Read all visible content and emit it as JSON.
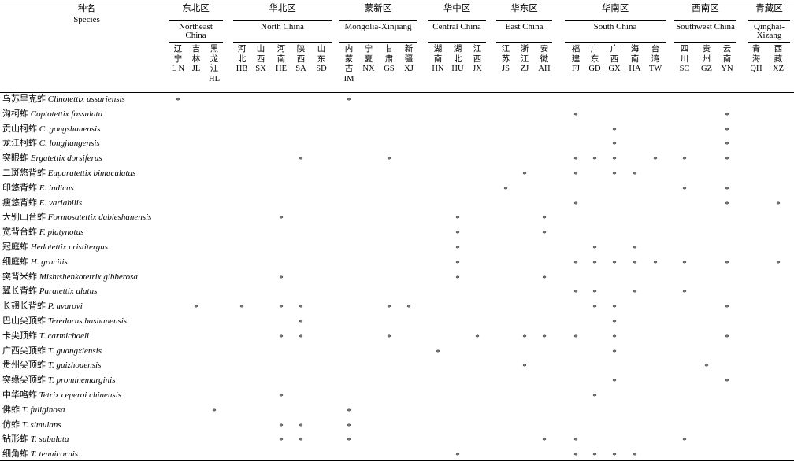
{
  "header": {
    "title_cn": "种名",
    "title_en": "Species"
  },
  "regions": [
    {
      "cn": "东北区",
      "en": "Northeast China"
    },
    {
      "cn": "华北区",
      "en": "North China"
    },
    {
      "cn": "蒙新区",
      "en": "Mongolia-Xinjiang"
    },
    {
      "cn": "华中区",
      "en": "Central China"
    },
    {
      "cn": "华东区",
      "en": "East China"
    },
    {
      "cn": "华南区",
      "en": "South China"
    },
    {
      "cn": "西南区",
      "en": "Southwest China"
    },
    {
      "cn": "青藏区",
      "en": "Qinghai-Xizang"
    }
  ],
  "provinces": [
    {
      "cn": "辽宁",
      "code": "L N"
    },
    {
      "cn": "吉林",
      "code": "JL"
    },
    {
      "cn": "黑龙江",
      "code": "HL"
    },
    {
      "cn": "河北",
      "code": "HB"
    },
    {
      "cn": "山西",
      "code": "SX"
    },
    {
      "cn": "河南",
      "code": "HE"
    },
    {
      "cn": "陕西",
      "code": "SA"
    },
    {
      "cn": "山东",
      "code": "SD"
    },
    {
      "cn": "内蒙古",
      "code": "IM"
    },
    {
      "cn": "宁夏",
      "code": "NX"
    },
    {
      "cn": "甘肃",
      "code": "GS"
    },
    {
      "cn": "新疆",
      "code": "XJ"
    },
    {
      "cn": "湖南",
      "code": "HN"
    },
    {
      "cn": "湖北",
      "code": "HU"
    },
    {
      "cn": "江西",
      "code": "JX"
    },
    {
      "cn": "江苏",
      "code": "JS"
    },
    {
      "cn": "浙江",
      "code": "ZJ"
    },
    {
      "cn": "安徽",
      "code": "AH"
    },
    {
      "cn": "福建",
      "code": "FJ"
    },
    {
      "cn": "广东",
      "code": "GD"
    },
    {
      "cn": "广西",
      "code": "GX"
    },
    {
      "cn": "海南",
      "code": "HA"
    },
    {
      "cn": "台湾",
      "code": "TW"
    },
    {
      "cn": "四川",
      "code": "SC"
    },
    {
      "cn": "贵州",
      "code": "GZ"
    },
    {
      "cn": "云南",
      "code": "YN"
    },
    {
      "cn": "青海",
      "code": "QH"
    },
    {
      "cn": "西藏",
      "code": "XZ"
    }
  ],
  "mark": "*",
  "species": [
    {
      "cn": "乌苏里克蚱",
      "latin": "Clinotettix ussuriensis",
      "present": [
        "LN",
        "IM"
      ]
    },
    {
      "cn": "沟柯蚱",
      "latin": "Coptotettix fossulatu",
      "present": [
        "FJ",
        "YN"
      ]
    },
    {
      "cn": "贡山柯蚱",
      "latin": "C. gongshanensis",
      "present": [
        "GX",
        "YN"
      ]
    },
    {
      "cn": "龙江柯蚱",
      "latin": "C. longjiangensis",
      "present": [
        "GX",
        "YN"
      ]
    },
    {
      "cn": "突眼蚱",
      "latin": "Ergatettix dorsiferus",
      "present": [
        "SA",
        "GS",
        "FJ",
        "GD",
        "GX",
        "TW",
        "SC",
        "YN"
      ]
    },
    {
      "cn": "二斑悠背蚱",
      "latin": "Euparatettix bimaculatus",
      "present": [
        "ZJ",
        "FJ",
        "GX",
        "HA"
      ]
    },
    {
      "cn": "印悠背蚱",
      "latin": "E. indicus",
      "present": [
        "JS",
        "SC",
        "YN"
      ]
    },
    {
      "cn": "瘦悠背蚱",
      "latin": "E. variabilis",
      "present": [
        "FJ",
        "YN",
        "XZ"
      ]
    },
    {
      "cn": "大别山台蚱",
      "latin": "Formosatettix dabieshanensis",
      "present": [
        "HE",
        "HU",
        "AH"
      ]
    },
    {
      "cn": "宽背台蚱",
      "latin": "F. platynotus",
      "present": [
        "HU",
        "AH"
      ]
    },
    {
      "cn": "冠庭蚱",
      "latin": "Hedotettix cristitergus",
      "present": [
        "HU",
        "GD",
        "HA"
      ]
    },
    {
      "cn": "细庭蚱",
      "latin": "H. gracilis",
      "present": [
        "HU",
        "FJ",
        "GD",
        "GX",
        "HA",
        "TW",
        "SC",
        "YN",
        "XZ"
      ]
    },
    {
      "cn": "突背米蚱",
      "latin": "Mishtshenkotetrix gibberosa",
      "present": [
        "HE",
        "HU",
        "AH"
      ]
    },
    {
      "cn": "翼长背蚱",
      "latin": "Paratettix alatus",
      "present": [
        "FJ",
        "GD",
        "HA",
        "SC"
      ]
    },
    {
      "cn": "长翅长背蚱",
      "latin": "P. uvarovi",
      "present": [
        "JL",
        "HB",
        "HE",
        "SA",
        "GS",
        "XJ",
        "GD",
        "GX",
        "YN"
      ]
    },
    {
      "cn": "巴山尖顶蚱",
      "latin": "Teredorus bashanensis",
      "present": [
        "SA",
        "GX"
      ]
    },
    {
      "cn": "卡尖顶蚱",
      "latin": "T. carmichaeli",
      "present": [
        "HE",
        "SA",
        "GS",
        "JX",
        "ZJ",
        "AH",
        "FJ",
        "GX",
        "YN"
      ]
    },
    {
      "cn": "广西尖顶蚱",
      "latin": "T. guangxiensis",
      "present": [
        "HN",
        "GX"
      ]
    },
    {
      "cn": "贵州尖顶蚱",
      "latin": "T. guizhouensis",
      "present": [
        "ZJ",
        "GZ"
      ]
    },
    {
      "cn": "突缘尖顶蚱",
      "latin": "T. prominemarginis",
      "present": [
        "GX",
        "YN"
      ]
    },
    {
      "cn": "中华咯蚱",
      "latin": "Tetrix ceperoi chinensis",
      "present": [
        "HE",
        "GD"
      ]
    },
    {
      "cn": "佛蚱",
      "latin": "T. fuliginosa",
      "present": [
        "HL",
        "IM"
      ]
    },
    {
      "cn": "仿蚱",
      "latin": "T. simulans",
      "present": [
        "HE",
        "SA",
        "IM"
      ]
    },
    {
      "cn": "钻形蚱",
      "latin": "T. subulata",
      "present": [
        "HE",
        "SA",
        "IM",
        "AH",
        "FJ",
        "SC"
      ]
    },
    {
      "cn": "细角蚱",
      "latin": "T. tenuicornis",
      "present": [
        "HU",
        "FJ",
        "GD",
        "GX",
        "HA"
      ]
    }
  ]
}
